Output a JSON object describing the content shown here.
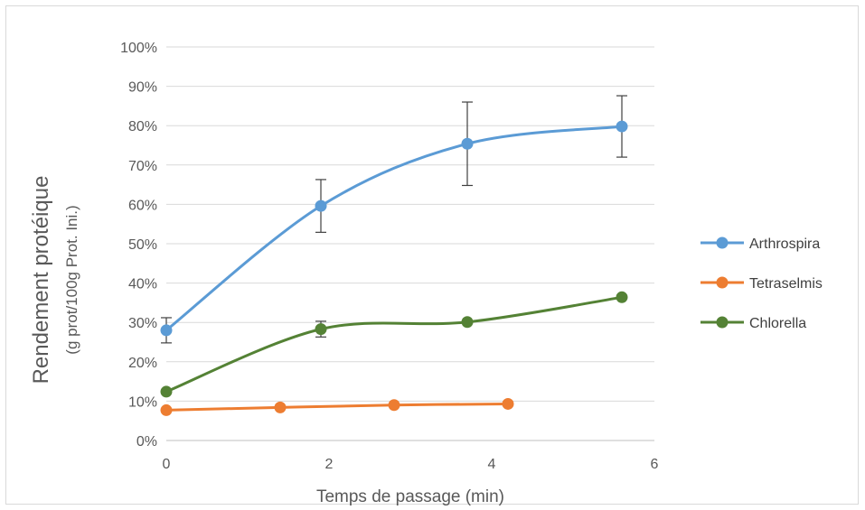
{
  "chart_data": {
    "type": "scatter",
    "title": "",
    "xlabel": "Temps de passage (min)",
    "ylabel": "Rendement protéique",
    "ylabel_sub": "(g prot/100g Prot. Ini.)",
    "xlim": [
      0,
      6
    ],
    "ylim": [
      0,
      100
    ],
    "x_ticks": [
      0,
      2,
      4,
      6
    ],
    "y_ticks": [
      0,
      10,
      20,
      30,
      40,
      50,
      60,
      70,
      80,
      90,
      100
    ],
    "y_tick_suffix": "%",
    "grid": "horizontal",
    "legend_position": "right",
    "smoothed_lines": true,
    "series": [
      {
        "name": "Arthrospira",
        "color": "#5b9bd5",
        "x": [
          0,
          1.9,
          3.7,
          5.6
        ],
        "y": [
          28,
          59.6,
          75.4,
          79.8
        ],
        "error": [
          3.2,
          6.7,
          10.6,
          7.8
        ]
      },
      {
        "name": "Tetraselmis",
        "color": "#ed7d31",
        "x": [
          0,
          1.4,
          2.8,
          4.2
        ],
        "y": [
          7.7,
          8.4,
          9,
          9.3
        ],
        "error": [
          0,
          0,
          0,
          0
        ]
      },
      {
        "name": "Chlorella",
        "color": "#548235",
        "x": [
          0,
          1.9,
          3.7,
          5.6
        ],
        "y": [
          12.4,
          28.3,
          30.1,
          36.4
        ],
        "error": [
          0,
          2,
          0,
          0
        ]
      }
    ]
  }
}
